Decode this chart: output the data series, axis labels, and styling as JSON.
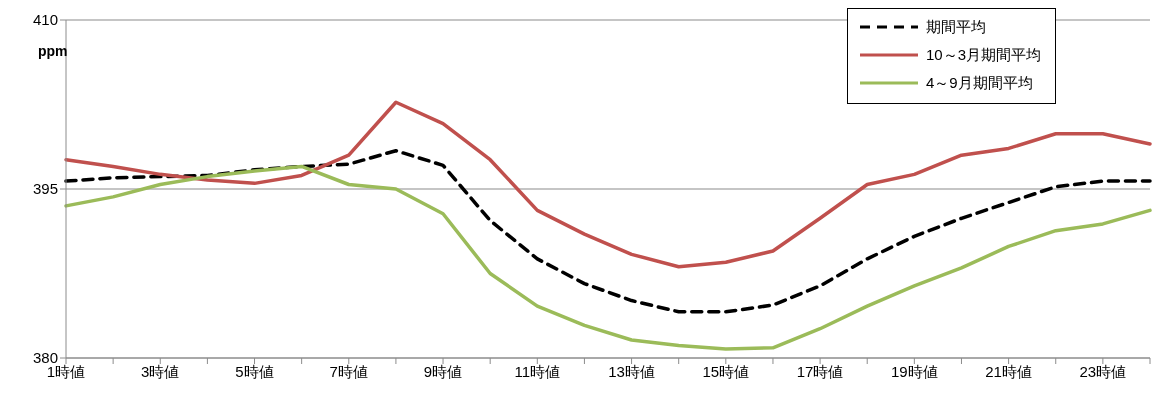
{
  "chart_data": {
    "type": "line",
    "ylabel": "ppm",
    "categories": [
      "1時値",
      null,
      "3時値",
      null,
      "5時値",
      null,
      "7時値",
      null,
      "9時値",
      null,
      "11時値",
      null,
      "13時値",
      null,
      "15時値",
      null,
      "17時値",
      null,
      "19時値",
      null,
      "21時値",
      null,
      "23時値",
      null
    ],
    "series": [
      {
        "name": "期間平均",
        "color": "#000000",
        "line_style": "dashed",
        "values": [
          395.7,
          396.0,
          396.1,
          396.2,
          396.7,
          397.0,
          397.2,
          398.4,
          397.1,
          392.2,
          388.8,
          386.6,
          385.1,
          384.1,
          384.1,
          384.7,
          386.4,
          388.8,
          390.8,
          392.4,
          393.8,
          395.2,
          395.7,
          395.7
        ]
      },
      {
        "name": "10～3月期間平均",
        "color": "#c0504d",
        "line_style": "solid",
        "values": [
          397.6,
          397.0,
          396.3,
          395.8,
          395.5,
          396.2,
          398.0,
          402.7,
          400.8,
          397.6,
          393.1,
          391.0,
          389.2,
          388.1,
          388.5,
          389.5,
          392.4,
          395.4,
          396.3,
          398.0,
          398.6,
          399.9,
          399.9,
          399.0
        ]
      },
      {
        "name": "4～9月期間平均",
        "color": "#9bbb59",
        "line_style": "solid",
        "values": [
          393.5,
          394.3,
          395.4,
          396.1,
          396.6,
          397.0,
          395.4,
          395.0,
          392.8,
          387.5,
          384.6,
          382.9,
          381.6,
          381.1,
          380.8,
          380.9,
          382.6,
          384.6,
          386.4,
          388.0,
          389.9,
          391.3,
          391.9,
          393.1
        ]
      }
    ],
    "ylim": [
      380,
      410
    ],
    "yticks": [
      380,
      395,
      410
    ],
    "grid": "y",
    "legend": "top right",
    "marker": "none"
  }
}
